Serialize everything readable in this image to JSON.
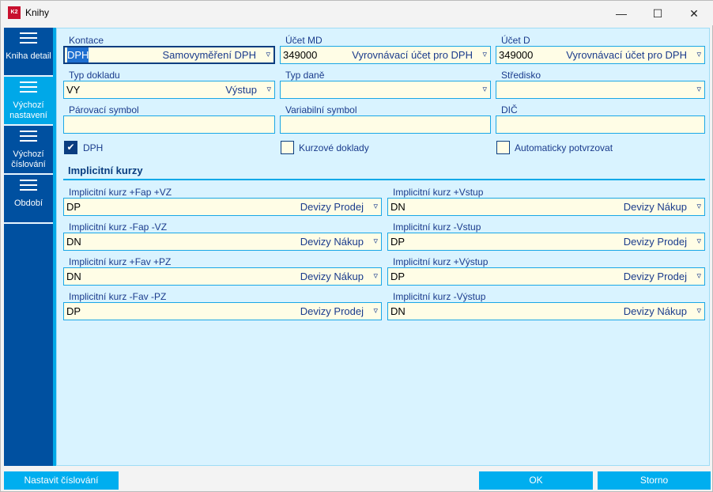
{
  "window": {
    "title": "Knihy",
    "minimize": "—",
    "maximize": "☐",
    "close": "✕",
    "logo": "K2"
  },
  "sidebar": {
    "items": [
      {
        "label": "Kniha detail",
        "active": false
      },
      {
        "label": "Výchozí nastavení",
        "active": true
      },
      {
        "label": "Výchozí číslování",
        "active": false
      },
      {
        "label": "Období",
        "active": false
      }
    ]
  },
  "fields": {
    "kontace": {
      "label": "Kontace",
      "code": "DPH",
      "desc": "Samovyměření DPH"
    },
    "ucet_md": {
      "label": "Účet MD",
      "code": "349000",
      "desc": "Vyrovnávací účet pro DPH"
    },
    "ucet_d": {
      "label": "Účet D",
      "code": "349000",
      "desc": "Vyrovnávací účet pro DPH"
    },
    "typ_dokladu": {
      "label": "Typ dokladu",
      "code": "VY",
      "desc": "Výstup"
    },
    "typ_dane": {
      "label": "Typ daně",
      "code": "",
      "desc": ""
    },
    "stredisko": {
      "label": "Středisko",
      "code": "",
      "desc": ""
    },
    "parovaci": {
      "label": "Párovací symbol",
      "value": ""
    },
    "variabilni": {
      "label": "Variabilní symbol",
      "value": ""
    },
    "dic": {
      "label": "DIČ",
      "value": ""
    }
  },
  "checkboxes": [
    {
      "label": "DPH",
      "checked": true
    },
    {
      "label": "Kurzové doklady",
      "checked": false
    },
    {
      "label": "Automaticky potvrzovat",
      "checked": false
    }
  ],
  "section": {
    "title": "Implicitní kurzy"
  },
  "kurzy": [
    {
      "label": "Implicitní kurz +Fap +VZ",
      "code": "DP",
      "desc": "Devizy Prodej"
    },
    {
      "label": "Implicitní kurz +Vstup",
      "code": "DN",
      "desc": "Devizy Nákup"
    },
    {
      "label": "Implicitní kurz -Fap -VZ",
      "code": "DN",
      "desc": "Devizy Nákup"
    },
    {
      "label": "Implicitní kurz -Vstup",
      "code": "DP",
      "desc": "Devizy Prodej"
    },
    {
      "label": "Implicitní kurz +Fav +PZ",
      "code": "DN",
      "desc": "Devizy Nákup"
    },
    {
      "label": "Implicitní kurz +Výstup",
      "code": "DP",
      "desc": "Devizy Prodej"
    },
    {
      "label": "Implicitní kurz -Fav -PZ",
      "code": "DP",
      "desc": "Devizy Prodej"
    },
    {
      "label": "Implicitní kurz -Výstup",
      "code": "DN",
      "desc": "Devizy Nákup"
    }
  ],
  "buttons": {
    "numbering": "Nastavit číslování",
    "ok": "OK",
    "cancel": "Storno"
  },
  "colors": {
    "sidebar": "#0050a0",
    "accent": "#00a8e8",
    "background": "#d9f3ff",
    "input": "#fffde6"
  }
}
